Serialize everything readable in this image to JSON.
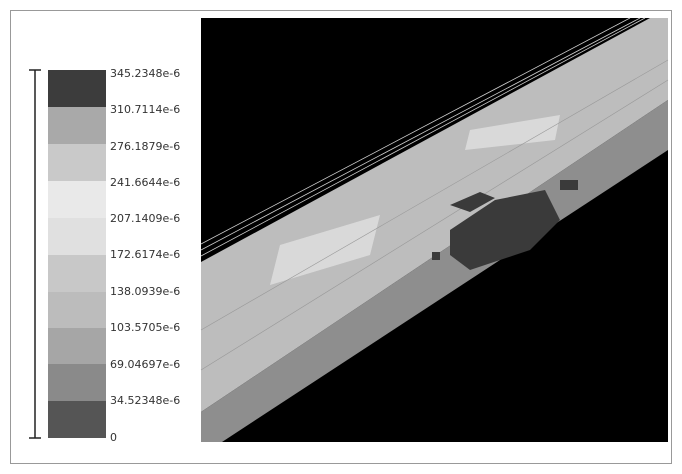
{
  "legend": {
    "labels": [
      "345.2348e-6",
      "310.7114e-6",
      "276.1879e-6",
      "241.6644e-6",
      "207.1409e-6",
      "172.6174e-6",
      "138.0939e-6",
      "103.5705e-6",
      "69.04697e-6",
      "34.52348e-6",
      "0"
    ]
  }
}
